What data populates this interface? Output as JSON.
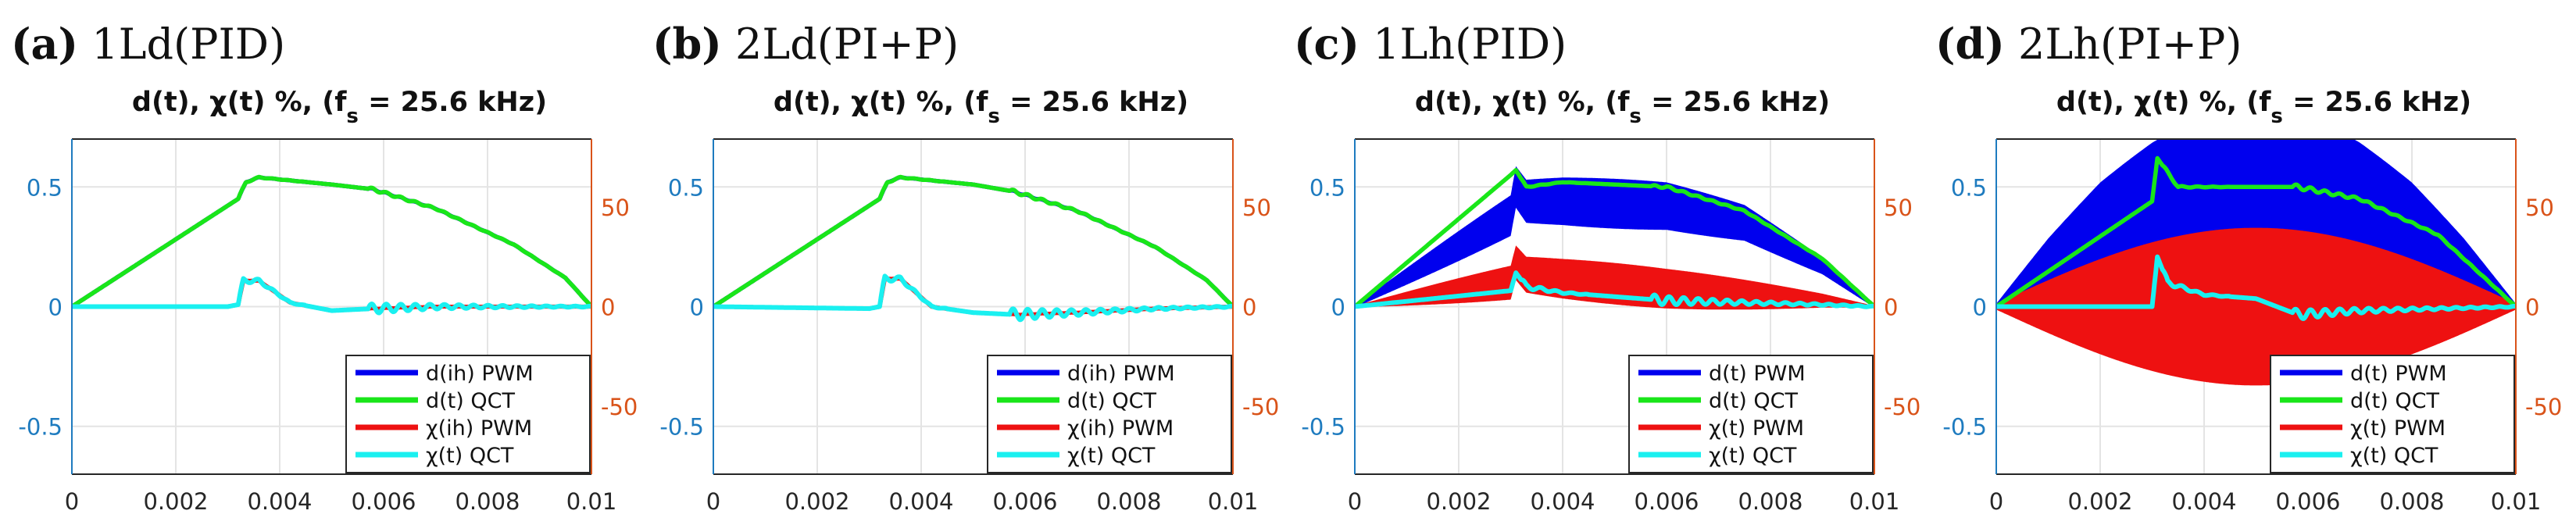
{
  "colors": {
    "blue": "#0000ee",
    "green": "#19e619",
    "red": "#ee1111",
    "cyan": "#1af0f0",
    "left_axis": "#1e7bbf",
    "right_axis": "#d95319",
    "grid": "#e4e4e4"
  },
  "chart_data": [
    {
      "type": "line",
      "panel_letter": "(a)",
      "panel_name": " 1Ld(PID)",
      "title_main": "d(t), χ(t) %, (f",
      "title_sub": "s",
      "title_end": " = 25.6 kHz)",
      "xlim": [
        0,
        0.01
      ],
      "ylim": [
        -0.7,
        0.7
      ],
      "y2lim": [
        -84,
        84
      ],
      "xticks": [
        "0",
        "0.002",
        "0.004",
        "0.006",
        "0.008",
        "0.01"
      ],
      "yticks": [
        "-0.5",
        "0",
        "0.5"
      ],
      "y2ticks": [
        "-50",
        "0",
        "50"
      ],
      "legend": [
        "d(ih) PWM",
        "d(t) QCT",
        "χ(ih) PWM",
        "χ(t) QCT"
      ],
      "series": [
        {
          "name": "d(ih) PWM",
          "axis": "left",
          "band": false,
          "ripple": 0.004,
          "x": [
            0,
            0.0032,
            0.00335,
            0.0036,
            0.005,
            0.0058,
            0.007,
            0.0085,
            0.0095,
            0.01
          ],
          "values": [
            0,
            0.45,
            0.52,
            0.54,
            0.51,
            0.49,
            0.41,
            0.26,
            0.12,
            0
          ]
        },
        {
          "name": "d(t) QCT",
          "axis": "left",
          "band": false,
          "ripple": 0.006,
          "x": [
            0,
            0.0032,
            0.00335,
            0.0036,
            0.005,
            0.0058,
            0.007,
            0.0085,
            0.0095,
            0.01
          ],
          "values": [
            0,
            0.45,
            0.52,
            0.54,
            0.51,
            0.49,
            0.41,
            0.26,
            0.12,
            0
          ]
        },
        {
          "name": "χ(ih) PWM",
          "axis": "right",
          "band": false,
          "ripple": 0.3,
          "x": [
            0,
            0.003,
            0.0032,
            0.0033,
            0.0036,
            0.0042,
            0.005,
            0.0058,
            0.007,
            0.0085,
            0.01
          ],
          "values": [
            0,
            0,
            1,
            13,
            13,
            2,
            -2,
            -1,
            0,
            0,
            0
          ]
        },
        {
          "name": "χ(t) QCT",
          "axis": "right",
          "band": false,
          "ripple": 2.5,
          "x": [
            0,
            0.003,
            0.0032,
            0.0033,
            0.0036,
            0.0042,
            0.005,
            0.0058,
            0.007,
            0.0085,
            0.01
          ],
          "values": [
            0,
            0,
            1,
            13,
            13,
            2,
            -2,
            -1,
            0,
            0,
            0
          ]
        }
      ]
    },
    {
      "type": "line",
      "panel_letter": "(b)",
      "panel_name": " 2Ld(PI+P)",
      "title_main": "d(t), χ(t) %, (f",
      "title_sub": "s",
      "title_end": " = 25.6 kHz)",
      "xlim": [
        0,
        0.01
      ],
      "ylim": [
        -0.7,
        0.7
      ],
      "y2lim": [
        -84,
        84
      ],
      "xticks": [
        "0",
        "0.002",
        "0.004",
        "0.006",
        "0.008",
        "0.01"
      ],
      "yticks": [
        "-0.5",
        "0",
        "0.5"
      ],
      "y2ticks": [
        "-50",
        "0",
        "50"
      ],
      "legend": [
        "d(ih) PWM",
        "d(t) QCT",
        "χ(ih) PWM",
        "χ(t) QCT"
      ],
      "series": [
        {
          "name": "d(ih) PWM",
          "axis": "left",
          "band": false,
          "ripple": 0.004,
          "x": [
            0,
            0.0032,
            0.00335,
            0.0036,
            0.005,
            0.0058,
            0.007,
            0.0085,
            0.0095,
            0.01
          ],
          "values": [
            0,
            0.45,
            0.52,
            0.54,
            0.51,
            0.48,
            0.4,
            0.25,
            0.11,
            0
          ]
        },
        {
          "name": "d(t) QCT",
          "axis": "left",
          "band": false,
          "ripple": 0.007,
          "x": [
            0,
            0.0032,
            0.00335,
            0.0036,
            0.005,
            0.0058,
            0.007,
            0.0085,
            0.0095,
            0.01
          ],
          "values": [
            0,
            0.45,
            0.52,
            0.54,
            0.51,
            0.48,
            0.4,
            0.25,
            0.11,
            0
          ]
        },
        {
          "name": "χ(ih) PWM",
          "axis": "right",
          "band": false,
          "ripple": 0.3,
          "x": [
            0,
            0.003,
            0.0032,
            0.0033,
            0.0036,
            0.0042,
            0.005,
            0.0058,
            0.007,
            0.0085,
            0.01
          ],
          "values": [
            0,
            -1,
            0,
            14,
            14,
            0,
            -3,
            -4,
            -3,
            -1,
            0
          ]
        },
        {
          "name": "χ(t) QCT",
          "axis": "right",
          "band": false,
          "ripple": 3,
          "x": [
            0,
            0.003,
            0.0032,
            0.0033,
            0.0036,
            0.0042,
            0.005,
            0.0058,
            0.007,
            0.0085,
            0.01
          ],
          "values": [
            0,
            -1,
            0,
            14,
            14,
            0,
            -3,
            -4,
            -3,
            -1,
            0
          ]
        }
      ]
    },
    {
      "type": "line",
      "panel_letter": "(c)",
      "panel_name": " 1Lh(PID)",
      "title_main": "d(t), χ(t) %, (f",
      "title_sub": "s",
      "title_end": " = 25.6 kHz)",
      "xlim": [
        0,
        0.01
      ],
      "ylim": [
        -0.7,
        0.7
      ],
      "y2lim": [
        -84,
        84
      ],
      "xticks": [
        "0",
        "0.002",
        "0.004",
        "0.006",
        "0.008",
        "0.01"
      ],
      "yticks": [
        "-0.5",
        "0",
        "0.5"
      ],
      "y2ticks": [
        "-50",
        "0",
        "50"
      ],
      "legend": [
        "d(t) PWM",
        "d(t) QCT",
        "χ(t) PWM",
        "χ(t) QCT"
      ],
      "series": [
        {
          "name": "d(t) PWM",
          "axis": "left",
          "band": true,
          "ripple": 0.1,
          "x": [
            0,
            0.003,
            0.0031,
            0.0033,
            0.004,
            0.006,
            0.0075,
            0.009,
            0.01
          ],
          "values": [
            0,
            0.38,
            0.5,
            0.44,
            0.44,
            0.42,
            0.35,
            0.17,
            0
          ]
        },
        {
          "name": "d(t) QCT",
          "axis": "left",
          "band": false,
          "ripple": 0.005,
          "x": [
            0,
            0.003,
            0.0031,
            0.0033,
            0.004,
            0.006,
            0.0075,
            0.009,
            0.01
          ],
          "values": [
            0,
            0.55,
            0.57,
            0.5,
            0.52,
            0.5,
            0.4,
            0.2,
            0
          ]
        },
        {
          "name": "χ(t) PWM",
          "axis": "right",
          "band": true,
          "ripple": 10,
          "x": [
            0,
            0.003,
            0.0031,
            0.0033,
            0.004,
            0.006,
            0.0075,
            0.009,
            0.01
          ],
          "values": [
            0,
            12,
            22,
            16,
            14,
            9,
            6,
            3,
            0
          ]
        },
        {
          "name": "χ(t) QCT",
          "axis": "right",
          "band": false,
          "ripple": 2.5,
          "x": [
            0,
            0.003,
            0.0031,
            0.0033,
            0.004,
            0.006,
            0.0075,
            0.009,
            0.01
          ],
          "values": [
            0,
            8,
            17,
            10,
            7,
            3,
            2,
            1,
            0
          ]
        }
      ]
    },
    {
      "type": "line",
      "panel_letter": "(d)",
      "panel_name": " 2Lh(PI+P)",
      "title_main": "d(t), χ(t) %, (f",
      "title_sub": "s",
      "title_end": " = 25.6 kHz)",
      "xlim": [
        0,
        0.01
      ],
      "ylim": [
        -0.7,
        0.7
      ],
      "y2lim": [
        -84,
        84
      ],
      "xticks": [
        "0",
        "0.002",
        "0.004",
        "0.006",
        "0.008",
        "0.01"
      ],
      "yticks": [
        "-0.5",
        "0",
        "0.5"
      ],
      "y2ticks": [
        "-50",
        "0",
        "50"
      ],
      "legend": [
        "d(t) PWM",
        "d(t) QCT",
        "χ(t) PWM",
        "χ(t) QCT"
      ],
      "series": [
        {
          "name": "d(t) PWM",
          "axis": "left",
          "band": true,
          "ripple": 0.3,
          "x": [
            0,
            0.001,
            0.002,
            0.003,
            0.004,
            0.005,
            0.006,
            0.007,
            0.008,
            0.009,
            0.01
          ],
          "values": [
            0,
            0.18,
            0.33,
            0.43,
            0.5,
            0.52,
            0.5,
            0.43,
            0.33,
            0.18,
            0
          ]
        },
        {
          "name": "d(t) QCT",
          "axis": "left",
          "band": false,
          "ripple": 0.01,
          "x": [
            0,
            0.003,
            0.0031,
            0.0035,
            0.0045,
            0.0058,
            0.007,
            0.0085,
            0.01
          ],
          "values": [
            0,
            0.44,
            0.62,
            0.5,
            0.5,
            0.5,
            0.45,
            0.3,
            0
          ]
        },
        {
          "name": "χ(t) PWM",
          "axis": "right",
          "band": true,
          "ripple": 38,
          "x": [
            0,
            0.001,
            0.002,
            0.003,
            0.004,
            0.005,
            0.006,
            0.007,
            0.008,
            0.009,
            0.01
          ],
          "values": [
            0,
            0,
            0,
            0,
            0,
            0,
            0,
            0,
            0,
            0,
            0
          ]
        },
        {
          "name": "χ(t) QCT",
          "axis": "right",
          "band": false,
          "ripple": 2.5,
          "x": [
            0,
            0.003,
            0.0031,
            0.0033,
            0.004,
            0.005,
            0.0058,
            0.007,
            0.0085,
            0.01
          ],
          "values": [
            0,
            0,
            25,
            12,
            6,
            4,
            -4,
            -2,
            -1,
            0
          ]
        }
      ]
    }
  ]
}
